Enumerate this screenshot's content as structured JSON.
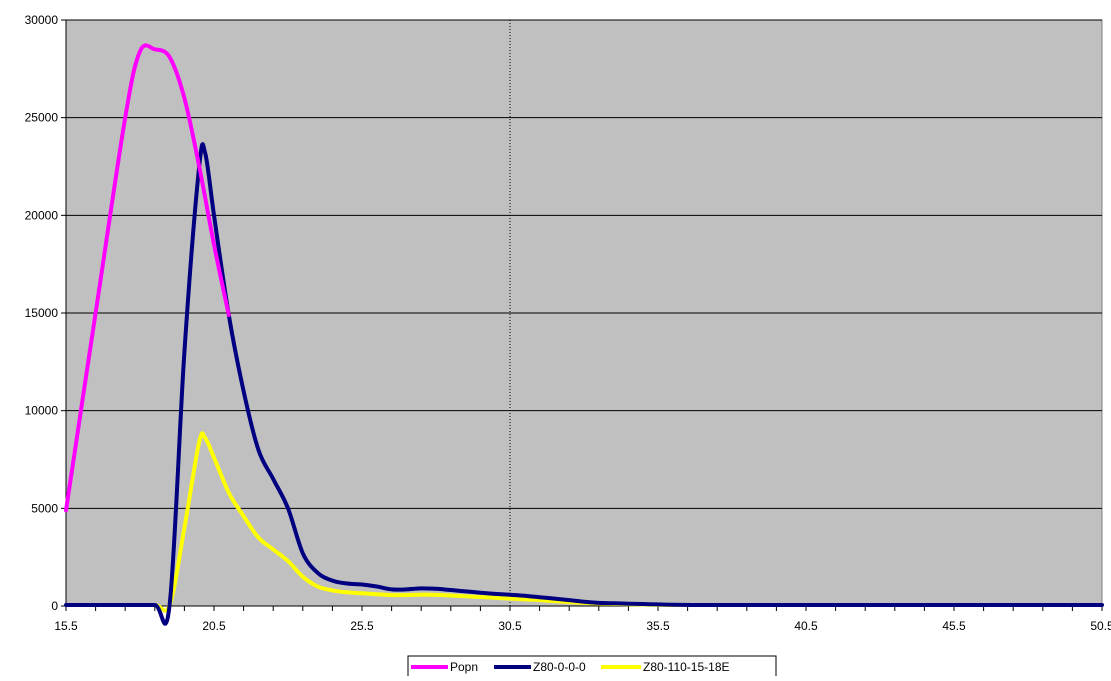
{
  "chart_data": {
    "type": "line",
    "title": "",
    "xlabel": "",
    "ylabel": "",
    "xlim": [
      15.5,
      50.5
    ],
    "ylim": [
      0,
      30000
    ],
    "x_ticks": [
      "15.5",
      "20.5",
      "25.5",
      "30.5",
      "35.5",
      "40.5",
      "45.5",
      "50.5"
    ],
    "y_ticks": [
      "0",
      "5000",
      "10000",
      "15000",
      "20000",
      "25000",
      "30000"
    ],
    "grid": "horizontal",
    "reference_line_x": 30.5,
    "plot_background": "#c0c0c0",
    "legend_position": "bottom",
    "series": [
      {
        "name": "Popn",
        "color": "#ff00ff",
        "points": [
          [
            15.5,
            4900
          ],
          [
            16.5,
            15000
          ],
          [
            17.5,
            25000
          ],
          [
            18.0,
            28400
          ],
          [
            18.5,
            28500
          ],
          [
            19.0,
            28100
          ],
          [
            19.5,
            26000
          ],
          [
            20.0,
            22500
          ],
          [
            20.5,
            18500
          ],
          [
            21.0,
            14900
          ]
        ]
      },
      {
        "name": "Z80-0-0-0",
        "color": "#000080",
        "points": [
          [
            15.5,
            0
          ],
          [
            16.5,
            0
          ],
          [
            17.5,
            0
          ],
          [
            18.5,
            0
          ],
          [
            19.0,
            0
          ],
          [
            19.5,
            13000
          ],
          [
            20.0,
            22500
          ],
          [
            20.2,
            23200
          ],
          [
            20.5,
            20000
          ],
          [
            21.0,
            14900
          ],
          [
            21.5,
            11000
          ],
          [
            22.0,
            8000
          ],
          [
            22.5,
            6500
          ],
          [
            23.0,
            5000
          ],
          [
            23.5,
            2700
          ],
          [
            24.0,
            1700
          ],
          [
            24.5,
            1300
          ],
          [
            25.0,
            1150
          ],
          [
            25.5,
            1100
          ],
          [
            26.0,
            1000
          ],
          [
            26.5,
            850
          ],
          [
            27.0,
            850
          ],
          [
            27.5,
            900
          ],
          [
            28.0,
            880
          ],
          [
            28.5,
            820
          ],
          [
            29.0,
            750
          ],
          [
            29.5,
            680
          ],
          [
            30.0,
            620
          ],
          [
            30.5,
            580
          ],
          [
            31.0,
            520
          ],
          [
            31.5,
            450
          ],
          [
            32.0,
            380
          ],
          [
            32.5,
            300
          ],
          [
            33.0,
            220
          ],
          [
            33.5,
            160
          ],
          [
            34.0,
            140
          ],
          [
            34.5,
            120
          ],
          [
            35.0,
            100
          ],
          [
            35.5,
            80
          ],
          [
            36.0,
            60
          ],
          [
            37.0,
            40
          ],
          [
            38.0,
            30
          ],
          [
            39.0,
            20
          ],
          [
            40.5,
            10
          ],
          [
            42.0,
            5
          ],
          [
            45.5,
            0
          ],
          [
            48.0,
            0
          ],
          [
            50.5,
            0
          ]
        ]
      },
      {
        "name": "Z80-110-15-18E",
        "color": "#ffff00",
        "points": [
          [
            15.5,
            0
          ],
          [
            16.5,
            0
          ],
          [
            17.5,
            0
          ],
          [
            18.5,
            0
          ],
          [
            19.0,
            0
          ],
          [
            19.5,
            4000
          ],
          [
            20.0,
            8400
          ],
          [
            20.2,
            8600
          ],
          [
            20.5,
            7600
          ],
          [
            21.0,
            5800
          ],
          [
            21.5,
            4600
          ],
          [
            22.0,
            3500
          ],
          [
            22.5,
            2900
          ],
          [
            23.0,
            2300
          ],
          [
            23.5,
            1500
          ],
          [
            24.0,
            1000
          ],
          [
            24.5,
            800
          ],
          [
            25.0,
            700
          ],
          [
            25.5,
            650
          ],
          [
            26.0,
            600
          ],
          [
            26.5,
            560
          ],
          [
            27.0,
            560
          ],
          [
            27.5,
            580
          ],
          [
            28.0,
            570
          ],
          [
            28.5,
            540
          ],
          [
            29.0,
            500
          ],
          [
            29.5,
            460
          ],
          [
            30.0,
            420
          ],
          [
            30.5,
            380
          ],
          [
            31.0,
            340
          ],
          [
            31.5,
            300
          ],
          [
            32.0,
            250
          ],
          [
            32.5,
            200
          ],
          [
            33.0,
            160
          ],
          [
            33.5,
            130
          ],
          [
            34.0,
            110
          ],
          [
            34.5,
            90
          ],
          [
            35.0,
            75
          ],
          [
            35.5,
            60
          ],
          [
            36.0,
            50
          ],
          [
            37.0,
            35
          ],
          [
            38.0,
            25
          ],
          [
            39.0,
            18
          ],
          [
            40.5,
            10
          ],
          [
            42.0,
            5
          ],
          [
            45.5,
            0
          ],
          [
            48.0,
            0
          ],
          [
            50.5,
            0
          ]
        ]
      }
    ]
  }
}
